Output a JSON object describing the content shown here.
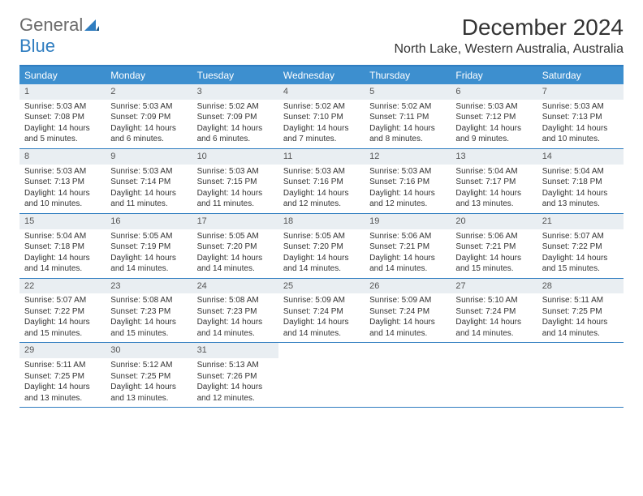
{
  "logo": {
    "text1": "General",
    "text2": "Blue"
  },
  "title": "December 2024",
  "location": "North Lake, Western Australia, Australia",
  "colors": {
    "header_bg": "#3d8fcf",
    "header_text": "#ffffff",
    "border": "#2f7dc0",
    "daynum_bg": "#e9eef2",
    "body_text": "#333333",
    "logo_gray": "#6b6b6b",
    "logo_blue": "#2f7dc0"
  },
  "dayNames": [
    "Sunday",
    "Monday",
    "Tuesday",
    "Wednesday",
    "Thursday",
    "Friday",
    "Saturday"
  ],
  "weeks": [
    [
      {
        "n": "1",
        "sr": "5:03 AM",
        "ss": "7:08 PM",
        "dl": "14 hours and 5 minutes."
      },
      {
        "n": "2",
        "sr": "5:03 AM",
        "ss": "7:09 PM",
        "dl": "14 hours and 6 minutes."
      },
      {
        "n": "3",
        "sr": "5:02 AM",
        "ss": "7:09 PM",
        "dl": "14 hours and 6 minutes."
      },
      {
        "n": "4",
        "sr": "5:02 AM",
        "ss": "7:10 PM",
        "dl": "14 hours and 7 minutes."
      },
      {
        "n": "5",
        "sr": "5:02 AM",
        "ss": "7:11 PM",
        "dl": "14 hours and 8 minutes."
      },
      {
        "n": "6",
        "sr": "5:03 AM",
        "ss": "7:12 PM",
        "dl": "14 hours and 9 minutes."
      },
      {
        "n": "7",
        "sr": "5:03 AM",
        "ss": "7:13 PM",
        "dl": "14 hours and 10 minutes."
      }
    ],
    [
      {
        "n": "8",
        "sr": "5:03 AM",
        "ss": "7:13 PM",
        "dl": "14 hours and 10 minutes."
      },
      {
        "n": "9",
        "sr": "5:03 AM",
        "ss": "7:14 PM",
        "dl": "14 hours and 11 minutes."
      },
      {
        "n": "10",
        "sr": "5:03 AM",
        "ss": "7:15 PM",
        "dl": "14 hours and 11 minutes."
      },
      {
        "n": "11",
        "sr": "5:03 AM",
        "ss": "7:16 PM",
        "dl": "14 hours and 12 minutes."
      },
      {
        "n": "12",
        "sr": "5:03 AM",
        "ss": "7:16 PM",
        "dl": "14 hours and 12 minutes."
      },
      {
        "n": "13",
        "sr": "5:04 AM",
        "ss": "7:17 PM",
        "dl": "14 hours and 13 minutes."
      },
      {
        "n": "14",
        "sr": "5:04 AM",
        "ss": "7:18 PM",
        "dl": "14 hours and 13 minutes."
      }
    ],
    [
      {
        "n": "15",
        "sr": "5:04 AM",
        "ss": "7:18 PM",
        "dl": "14 hours and 14 minutes."
      },
      {
        "n": "16",
        "sr": "5:05 AM",
        "ss": "7:19 PM",
        "dl": "14 hours and 14 minutes."
      },
      {
        "n": "17",
        "sr": "5:05 AM",
        "ss": "7:20 PM",
        "dl": "14 hours and 14 minutes."
      },
      {
        "n": "18",
        "sr": "5:05 AM",
        "ss": "7:20 PM",
        "dl": "14 hours and 14 minutes."
      },
      {
        "n": "19",
        "sr": "5:06 AM",
        "ss": "7:21 PM",
        "dl": "14 hours and 14 minutes."
      },
      {
        "n": "20",
        "sr": "5:06 AM",
        "ss": "7:21 PM",
        "dl": "14 hours and 15 minutes."
      },
      {
        "n": "21",
        "sr": "5:07 AM",
        "ss": "7:22 PM",
        "dl": "14 hours and 15 minutes."
      }
    ],
    [
      {
        "n": "22",
        "sr": "5:07 AM",
        "ss": "7:22 PM",
        "dl": "14 hours and 15 minutes."
      },
      {
        "n": "23",
        "sr": "5:08 AM",
        "ss": "7:23 PM",
        "dl": "14 hours and 15 minutes."
      },
      {
        "n": "24",
        "sr": "5:08 AM",
        "ss": "7:23 PM",
        "dl": "14 hours and 14 minutes."
      },
      {
        "n": "25",
        "sr": "5:09 AM",
        "ss": "7:24 PM",
        "dl": "14 hours and 14 minutes."
      },
      {
        "n": "26",
        "sr": "5:09 AM",
        "ss": "7:24 PM",
        "dl": "14 hours and 14 minutes."
      },
      {
        "n": "27",
        "sr": "5:10 AM",
        "ss": "7:24 PM",
        "dl": "14 hours and 14 minutes."
      },
      {
        "n": "28",
        "sr": "5:11 AM",
        "ss": "7:25 PM",
        "dl": "14 hours and 14 minutes."
      }
    ],
    [
      {
        "n": "29",
        "sr": "5:11 AM",
        "ss": "7:25 PM",
        "dl": "14 hours and 13 minutes."
      },
      {
        "n": "30",
        "sr": "5:12 AM",
        "ss": "7:25 PM",
        "dl": "14 hours and 13 minutes."
      },
      {
        "n": "31",
        "sr": "5:13 AM",
        "ss": "7:26 PM",
        "dl": "14 hours and 12 minutes."
      },
      null,
      null,
      null,
      null
    ]
  ],
  "labels": {
    "sunrise": "Sunrise:",
    "sunset": "Sunset:",
    "daylight": "Daylight:"
  }
}
